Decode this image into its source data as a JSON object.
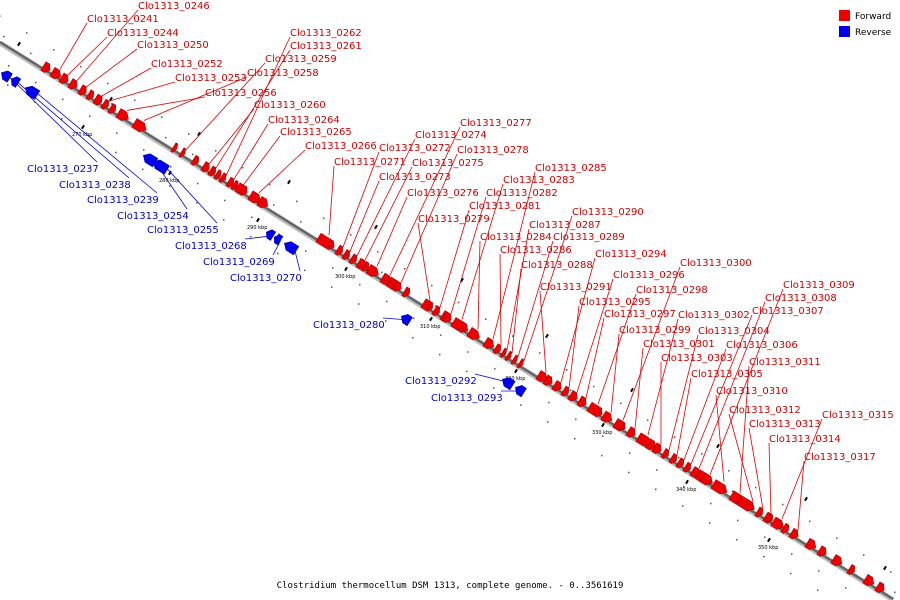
{
  "caption": "Clostridium thermocellum DSM 1313, complete genome. - 0..3561619",
  "legend": [
    {
      "label": "Forward",
      "color": "#ee0000"
    },
    {
      "label": "Reverse",
      "color": "#0000ee"
    }
  ],
  "ticks": [
    "270 kbp",
    "280 kbp",
    "290 kbp",
    "300 kbp",
    "310 kbp",
    "320 kbp",
    "330 kbp",
    "340 kbp",
    "350 kbp"
  ],
  "genes": [
    {
      "id": "Clo1313_0237",
      "strand": "reverse"
    },
    {
      "id": "Clo1313_0238",
      "strand": "reverse"
    },
    {
      "id": "Clo1313_0239",
      "strand": "reverse"
    },
    {
      "id": "Clo1313_0241",
      "strand": "forward"
    },
    {
      "id": "Clo1313_0244",
      "strand": "forward"
    },
    {
      "id": "Clo1313_0246",
      "strand": "forward"
    },
    {
      "id": "Clo1313_0250",
      "strand": "forward"
    },
    {
      "id": "Clo1313_0252",
      "strand": "forward"
    },
    {
      "id": "Clo1313_0253",
      "strand": "forward"
    },
    {
      "id": "Clo1313_0254",
      "strand": "reverse"
    },
    {
      "id": "Clo1313_0255",
      "strand": "reverse"
    },
    {
      "id": "Clo1313_0256",
      "strand": "forward"
    },
    {
      "id": "Clo1313_0258",
      "strand": "forward"
    },
    {
      "id": "Clo1313_0259",
      "strand": "forward"
    },
    {
      "id": "Clo1313_0260",
      "strand": "forward"
    },
    {
      "id": "Clo1313_0261",
      "strand": "forward"
    },
    {
      "id": "Clo1313_0262",
      "strand": "forward"
    },
    {
      "id": "Clo1313_0264",
      "strand": "forward"
    },
    {
      "id": "Clo1313_0265",
      "strand": "forward"
    },
    {
      "id": "Clo1313_0266",
      "strand": "forward"
    },
    {
      "id": "Clo1313_0268",
      "strand": "reverse"
    },
    {
      "id": "Clo1313_0269",
      "strand": "reverse"
    },
    {
      "id": "Clo1313_0270",
      "strand": "reverse"
    },
    {
      "id": "Clo1313_0271",
      "strand": "forward"
    },
    {
      "id": "Clo1313_0272",
      "strand": "forward"
    },
    {
      "id": "Clo1313_0273",
      "strand": "forward"
    },
    {
      "id": "Clo1313_0274",
      "strand": "forward"
    },
    {
      "id": "Clo1313_0275",
      "strand": "forward"
    },
    {
      "id": "Clo1313_0276",
      "strand": "forward"
    },
    {
      "id": "Clo1313_0277",
      "strand": "forward"
    },
    {
      "id": "Clo1313_0278",
      "strand": "forward"
    },
    {
      "id": "Clo1313_0279",
      "strand": "forward"
    },
    {
      "id": "Clo1313_0280",
      "strand": "reverse"
    },
    {
      "id": "Clo1313_0281",
      "strand": "forward"
    },
    {
      "id": "Clo1313_0282",
      "strand": "forward"
    },
    {
      "id": "Clo1313_0283",
      "strand": "forward"
    },
    {
      "id": "Clo1313_0284",
      "strand": "forward"
    },
    {
      "id": "Clo1313_0285",
      "strand": "forward"
    },
    {
      "id": "Clo1313_0286",
      "strand": "forward"
    },
    {
      "id": "Clo1313_0287",
      "strand": "forward"
    },
    {
      "id": "Clo1313_0288",
      "strand": "forward"
    },
    {
      "id": "Clo1313_0289",
      "strand": "forward"
    },
    {
      "id": "Clo1313_0290",
      "strand": "forward"
    },
    {
      "id": "Clo1313_0291",
      "strand": "forward"
    },
    {
      "id": "Clo1313_0292",
      "strand": "reverse"
    },
    {
      "id": "Clo1313_0293",
      "strand": "reverse"
    },
    {
      "id": "Clo1313_0294",
      "strand": "forward"
    },
    {
      "id": "Clo1313_0295",
      "strand": "forward"
    },
    {
      "id": "Clo1313_0296",
      "strand": "forward"
    },
    {
      "id": "Clo1313_0297",
      "strand": "forward"
    },
    {
      "id": "Clo1313_0298",
      "strand": "forward"
    },
    {
      "id": "Clo1313_0299",
      "strand": "forward"
    },
    {
      "id": "Clo1313_0300",
      "strand": "forward"
    },
    {
      "id": "Clo1313_0301",
      "strand": "forward"
    },
    {
      "id": "Clo1313_0302",
      "strand": "forward"
    },
    {
      "id": "Clo1313_0303",
      "strand": "forward"
    },
    {
      "id": "Clo1313_0304",
      "strand": "forward"
    },
    {
      "id": "Clo1313_0305",
      "strand": "forward"
    },
    {
      "id": "Clo1313_0306",
      "strand": "forward"
    },
    {
      "id": "Clo1313_0307",
      "strand": "forward"
    },
    {
      "id": "Clo1313_0308",
      "strand": "forward"
    },
    {
      "id": "Clo1313_0309",
      "strand": "forward"
    },
    {
      "id": "Clo1313_0310",
      "strand": "forward"
    },
    {
      "id": "Clo1313_0311",
      "strand": "forward"
    },
    {
      "id": "Clo1313_0312",
      "strand": "forward"
    },
    {
      "id": "Clo1313_0313",
      "strand": "forward"
    },
    {
      "id": "Clo1313_0314",
      "strand": "forward"
    },
    {
      "id": "Clo1313_0315",
      "strand": "forward"
    },
    {
      "id": "Clo1313_0317",
      "strand": "forward"
    }
  ]
}
